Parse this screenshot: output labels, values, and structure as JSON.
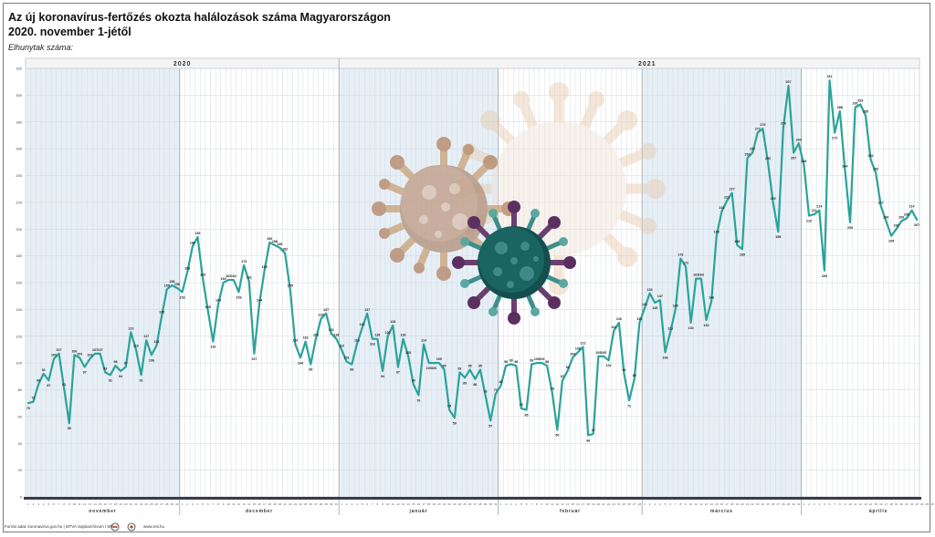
{
  "title_line1": "Az új koronavírus-fertőzés okozta halálozások száma Magyarországon",
  "title_line2": "2020. november 1-jétől",
  "y_axis_caption": "Elhunytak száma:",
  "source": "Forrás adat: koronavirus.gov.hu | MTVA Sajtóarchívum / MTI",
  "website": "www.mti.hu",
  "colors": {
    "line": "#2aa39a",
    "shade": "#e7eff6",
    "grid": "#cfd6dc",
    "axis": "#3a3a48"
  },
  "icons": [
    "coronavirus-icon-beige",
    "coronavirus-icon-light",
    "coronavirus-icon-teal"
  ],
  "chart_data": {
    "type": "line",
    "title": "Az új koronavírus-fertőzés okozta halálozások száma Magyarországon",
    "subtitle": "2020. november 1-jétől",
    "ylabel": "Elhunytak száma:",
    "ylim": [
      0,
      320
    ],
    "yticks": [
      0,
      20,
      40,
      60,
      80,
      100,
      120,
      140,
      160,
      180,
      200,
      220,
      240,
      260,
      280,
      300,
      320
    ],
    "grid": true,
    "years": [
      {
        "label": "2020",
        "from": 1,
        "to": 61
      },
      {
        "label": "2021",
        "from": 62,
        "to": 181
      }
    ],
    "months": [
      {
        "label": "november",
        "days": 30,
        "shaded": true
      },
      {
        "label": "december",
        "days": 31,
        "shaded": false
      },
      {
        "label": "január",
        "days": 31,
        "shaded": true
      },
      {
        "label": "február",
        "days": 28,
        "shaded": false
      },
      {
        "label": "március",
        "days": 31,
        "shaded": true
      },
      {
        "label": "április",
        "days": 30,
        "shaded": false
      }
    ],
    "series": [
      {
        "values": [
          70,
          71,
          84,
          92,
          87,
          103,
          107,
          81,
          55,
          106,
          104,
          97,
          103,
          107,
          107,
          93,
          91,
          98,
          94,
          97,
          123,
          110,
          91,
          117,
          106,
          113,
          135,
          155,
          158,
          156,
          153,
          168,
          187,
          194,
          163,
          139,
          116,
          144,
          160,
          162,
          162,
          153,
          173,
          161,
          107,
          144,
          169,
          190,
          188,
          186,
          182,
          155,
          114,
          104,
          116,
          99,
          118,
          133,
          137,
          122,
          118,
          110,
          101,
          99,
          114,
          126,
          137,
          118,
          118,
          94,
          120,
          128,
          97,
          118,
          105,
          84,
          76,
          114,
          100,
          100,
          100,
          95,
          65,
          59,
          93,
          89,
          95,
          88,
          95,
          76,
          57,
          77,
          83,
          98,
          99,
          98,
          66,
          65,
          99,
          100,
          100,
          98,
          78,
          50,
          87,
          94,
          104,
          108,
          112,
          46,
          47,
          105,
          105,
          102,
          124,
          130,
          92,
          72,
          88,
          130,
          141,
          152,
          145,
          147,
          108,
          123,
          140,
          178,
          172,
          130,
          163,
          163,
          132,
          146,
          195,
          213,
          221,
          227,
          188,
          185,
          253,
          257,
          272,
          275,
          250,
          220,
          198,
          276,
          307,
          257,
          264,
          248,
          210,
          211,
          214,
          169,
          311,
          272,
          288,
          244,
          205,
          291,
          293,
          285,
          252,
          242,
          217,
          206,
          195,
          200,
          206,
          208,
          214,
          207
        ]
      }
    ]
  }
}
